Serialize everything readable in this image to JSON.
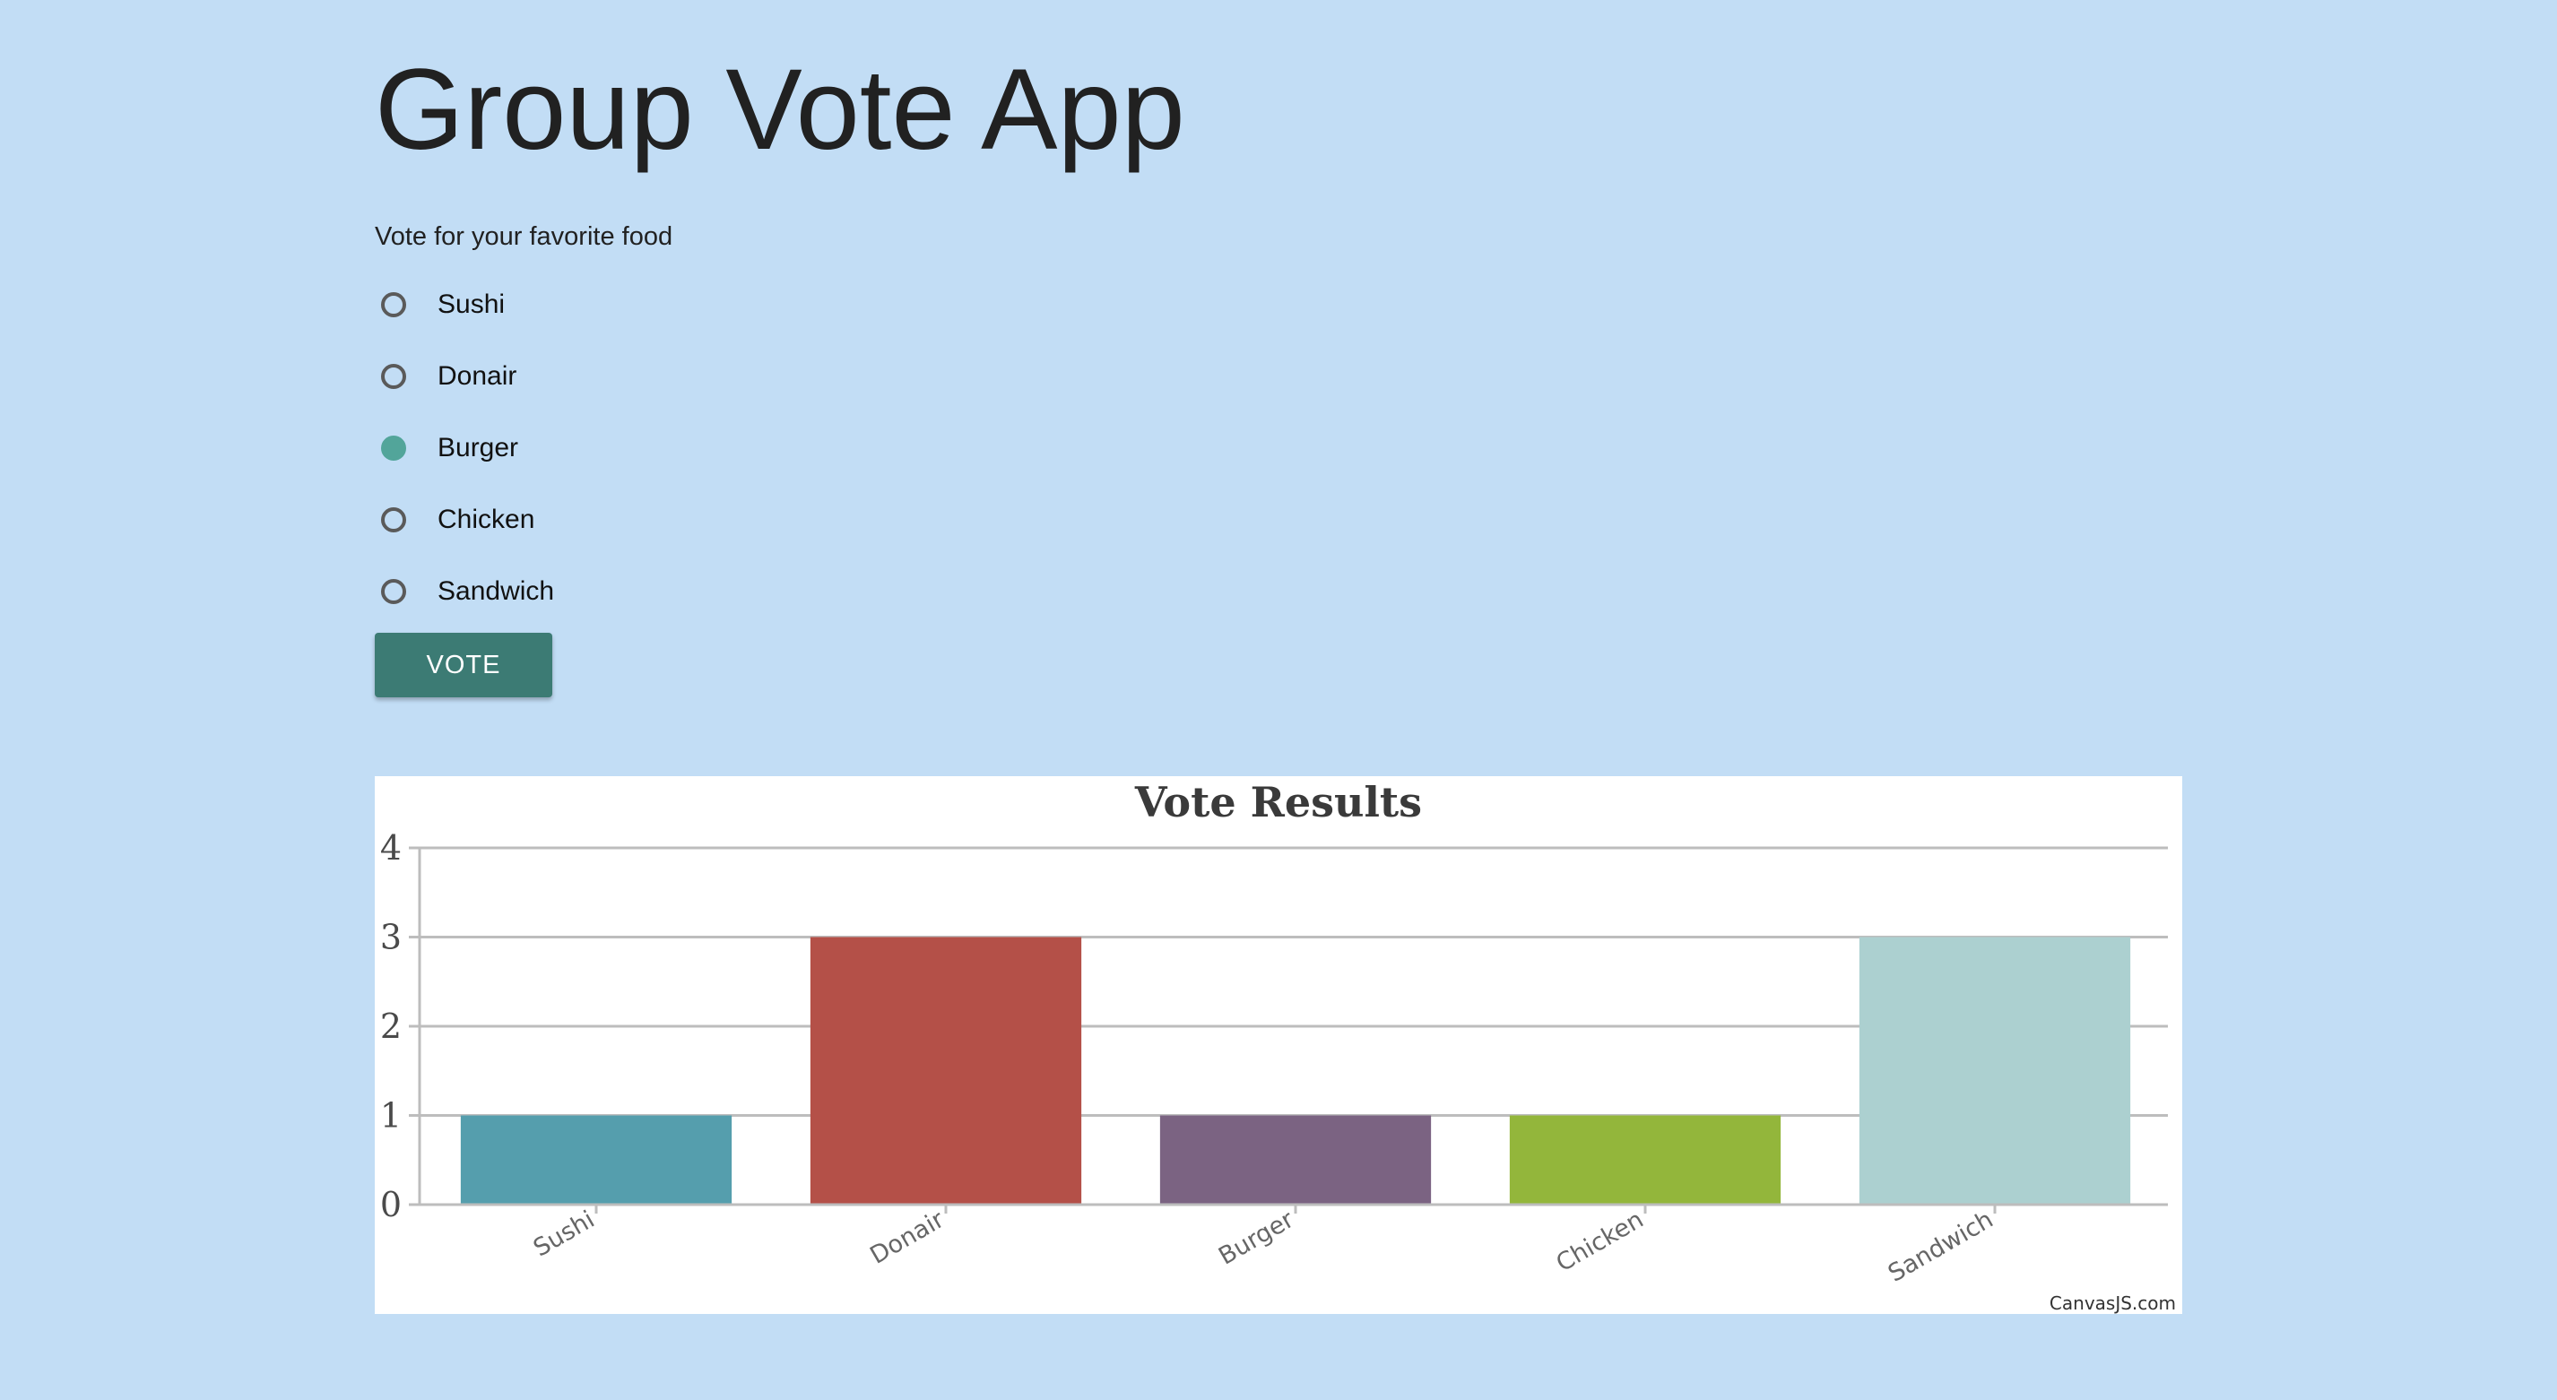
{
  "app": {
    "title": "Group Vote App",
    "prompt": "Vote for your favorite food"
  },
  "options": [
    {
      "label": "Sushi",
      "checked": false
    },
    {
      "label": "Donair",
      "checked": false
    },
    {
      "label": "Burger",
      "checked": true
    },
    {
      "label": "Chicken",
      "checked": false
    },
    {
      "label": "Sandwich",
      "checked": false
    }
  ],
  "vote_button": {
    "label": "VOTE"
  },
  "colors": {
    "background": "#c2ddf5",
    "button": "#3c7b74",
    "radio_checked": "#52a59a",
    "radio_unchecked": "#5a5a5a"
  },
  "chart_data": {
    "type": "bar",
    "title": "Vote Results",
    "categories": [
      "Sushi",
      "Donair",
      "Burger",
      "Chicken",
      "Sandwich"
    ],
    "values": [
      1,
      3,
      1,
      1,
      3
    ],
    "colors": [
      "#559ead",
      "#b45048",
      "#7b6382",
      "#93b63b",
      "#acd0d0"
    ],
    "ylim": [
      0,
      4
    ],
    "yticks": [
      0,
      1,
      2,
      3,
      4
    ],
    "grid": true,
    "xlabel": "",
    "ylabel": "",
    "credit": "CanvasJS.com"
  }
}
